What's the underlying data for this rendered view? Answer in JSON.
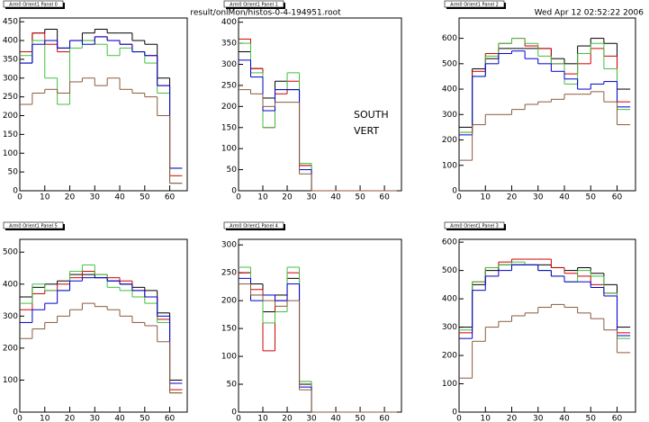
{
  "header": {
    "file": "result/onlMon/histos-0-4-194951.root",
    "date": "Wed Apr 12 02:52:22 2006",
    "labels": [
      "SOUTH",
      "VERT"
    ]
  },
  "chart_data": [
    {
      "type": "histogram",
      "title": "Arm0 Orient1 Panel 0",
      "bins": [
        0,
        5,
        10,
        15,
        20,
        25,
        30,
        35,
        40,
        45,
        50,
        55,
        60,
        65
      ],
      "xlim": [
        0,
        67
      ],
      "xticks": [
        0,
        10,
        20,
        30,
        40,
        50,
        60
      ],
      "ylim": [
        0,
        460
      ],
      "yticks": [
        0,
        50,
        100,
        150,
        200,
        250,
        300,
        350,
        400,
        450
      ],
      "series": [
        {
          "color": "#000000",
          "values": [
            340,
            420,
            430,
            380,
            400,
            420,
            430,
            420,
            420,
            400,
            390,
            300,
            60
          ]
        },
        {
          "color": "#d00000",
          "values": [
            370,
            420,
            390,
            370,
            400,
            400,
            410,
            400,
            390,
            370,
            360,
            280,
            40
          ]
        },
        {
          "color": "#40c040",
          "values": [
            360,
            400,
            300,
            230,
            380,
            400,
            390,
            360,
            380,
            370,
            340,
            260,
            20
          ]
        },
        {
          "color": "#0000d0",
          "values": [
            340,
            390,
            400,
            380,
            400,
            390,
            410,
            400,
            390,
            370,
            360,
            280,
            60
          ]
        },
        {
          "color": "#8b5a3c",
          "values": [
            230,
            260,
            270,
            260,
            290,
            300,
            280,
            300,
            270,
            260,
            250,
            200,
            20
          ]
        }
      ]
    },
    {
      "type": "histogram",
      "title": "Arm0 Orient1 Panel 1",
      "bins": [
        0,
        5,
        10,
        15,
        20,
        25,
        30,
        35,
        40,
        45,
        50,
        55,
        60,
        65
      ],
      "xlim": [
        0,
        67
      ],
      "xticks": [
        0,
        10,
        20,
        30,
        40,
        50,
        60
      ],
      "ylim": [
        0,
        410
      ],
      "yticks": [
        0,
        50,
        100,
        150,
        200,
        250,
        300,
        350,
        400
      ],
      "series": [
        {
          "color": "#000000",
          "values": [
            330,
            290,
            220,
            260,
            240,
            60,
            0,
            0,
            0,
            0,
            0,
            0,
            0
          ]
        },
        {
          "color": "#d00000",
          "values": [
            360,
            290,
            150,
            230,
            260,
            60,
            0,
            0,
            0,
            0,
            0,
            0,
            0
          ]
        },
        {
          "color": "#40c040",
          "values": [
            350,
            280,
            150,
            240,
            280,
            65,
            0,
            0,
            0,
            0,
            0,
            0,
            0
          ]
        },
        {
          "color": "#0000d0",
          "values": [
            310,
            270,
            190,
            240,
            240,
            50,
            0,
            0,
            0,
            0,
            0,
            0,
            0
          ]
        },
        {
          "color": "#8b5a3c",
          "values": [
            240,
            230,
            200,
            210,
            210,
            40,
            0,
            0,
            0,
            0,
            0,
            0,
            0
          ]
        }
      ]
    },
    {
      "type": "histogram",
      "title": "Arm0 Orient1 Panel 2",
      "bins": [
        0,
        5,
        10,
        15,
        20,
        25,
        30,
        35,
        40,
        45,
        50,
        55,
        60,
        65
      ],
      "xlim": [
        0,
        67
      ],
      "xticks": [
        0,
        10,
        20,
        30,
        40,
        50,
        60
      ],
      "ylim": [
        0,
        680
      ],
      "yticks": [
        0,
        100,
        200,
        300,
        400,
        500,
        600
      ],
      "series": [
        {
          "color": "#000000",
          "values": [
            250,
            480,
            520,
            560,
            560,
            560,
            560,
            520,
            500,
            570,
            600,
            580,
            400
          ]
        },
        {
          "color": "#d00000",
          "values": [
            230,
            470,
            540,
            580,
            600,
            570,
            560,
            500,
            460,
            500,
            560,
            530,
            350
          ]
        },
        {
          "color": "#40c040",
          "values": [
            230,
            450,
            530,
            580,
            600,
            580,
            530,
            500,
            420,
            540,
            580,
            480,
            320
          ]
        },
        {
          "color": "#0000d0",
          "values": [
            220,
            450,
            500,
            540,
            550,
            520,
            500,
            470,
            440,
            400,
            420,
            430,
            330
          ]
        },
        {
          "color": "#8b5a3c",
          "values": [
            120,
            260,
            300,
            300,
            320,
            340,
            350,
            360,
            380,
            380,
            390,
            350,
            260
          ]
        }
      ]
    },
    {
      "type": "histogram",
      "title": "Arm0 Orient1 Panel 5",
      "bins": [
        0,
        5,
        10,
        15,
        20,
        25,
        30,
        35,
        40,
        45,
        50,
        55,
        60,
        65
      ],
      "xlim": [
        0,
        67
      ],
      "xticks": [
        0,
        10,
        20,
        30,
        40,
        50,
        60
      ],
      "ylim": [
        0,
        540
      ],
      "yticks": [
        0,
        100,
        200,
        300,
        400,
        500
      ],
      "series": [
        {
          "color": "#000000",
          "values": [
            360,
            390,
            400,
            410,
            430,
            430,
            420,
            410,
            400,
            390,
            380,
            310,
            100
          ]
        },
        {
          "color": "#d00000",
          "values": [
            320,
            370,
            380,
            400,
            420,
            440,
            430,
            420,
            410,
            380,
            360,
            290,
            70
          ]
        },
        {
          "color": "#40c040",
          "values": [
            340,
            400,
            380,
            380,
            440,
            460,
            430,
            390,
            380,
            360,
            340,
            280,
            60
          ]
        },
        {
          "color": "#0000d0",
          "values": [
            280,
            320,
            340,
            380,
            410,
            420,
            420,
            410,
            400,
            380,
            360,
            300,
            90
          ]
        },
        {
          "color": "#8b5a3c",
          "values": [
            230,
            260,
            280,
            300,
            320,
            340,
            330,
            320,
            300,
            280,
            270,
            220,
            60
          ]
        }
      ]
    },
    {
      "type": "histogram",
      "title": "Arm0 Orient1 Panel 4",
      "bins": [
        0,
        5,
        10,
        15,
        20,
        25,
        30,
        35,
        40,
        45,
        50,
        55,
        60,
        65
      ],
      "xlim": [
        0,
        67
      ],
      "xticks": [
        0,
        10,
        20,
        30,
        40,
        50,
        60
      ],
      "ylim": [
        0,
        310
      ],
      "yticks": [
        0,
        50,
        100,
        150,
        200,
        250,
        300
      ],
      "series": [
        {
          "color": "#000000",
          "values": [
            250,
            230,
            180,
            210,
            240,
            50,
            0,
            0,
            0,
            0,
            0,
            0,
            0
          ]
        },
        {
          "color": "#d00000",
          "values": [
            250,
            220,
            110,
            200,
            250,
            55,
            0,
            0,
            0,
            0,
            0,
            0,
            0
          ]
        },
        {
          "color": "#40c040",
          "values": [
            260,
            210,
            160,
            180,
            260,
            55,
            0,
            0,
            0,
            0,
            0,
            0,
            0
          ]
        },
        {
          "color": "#0000d0",
          "values": [
            240,
            200,
            210,
            200,
            230,
            45,
            0,
            0,
            0,
            0,
            0,
            0,
            0
          ]
        },
        {
          "color": "#8b5a3c",
          "values": [
            230,
            210,
            200,
            190,
            200,
            40,
            0,
            0,
            0,
            0,
            0,
            0,
            0
          ]
        }
      ]
    },
    {
      "type": "histogram",
      "title": "Arm0 Orient1 Panel 3",
      "bins": [
        0,
        5,
        10,
        15,
        20,
        25,
        30,
        35,
        40,
        45,
        50,
        55,
        60,
        65
      ],
      "xlim": [
        0,
        67
      ],
      "xticks": [
        0,
        10,
        20,
        30,
        40,
        50,
        60
      ],
      "ylim": [
        0,
        610
      ],
      "yticks": [
        0,
        100,
        200,
        300,
        400,
        500,
        600
      ],
      "series": [
        {
          "color": "#000000",
          "values": [
            300,
            450,
            500,
            520,
            520,
            520,
            520,
            510,
            500,
            510,
            490,
            450,
            300
          ]
        },
        {
          "color": "#d00000",
          "values": [
            280,
            460,
            510,
            530,
            540,
            540,
            540,
            510,
            490,
            480,
            450,
            420,
            280
          ]
        },
        {
          "color": "#40c040",
          "values": [
            290,
            460,
            510,
            520,
            530,
            520,
            500,
            480,
            460,
            500,
            480,
            420,
            260
          ]
        },
        {
          "color": "#0000d0",
          "values": [
            260,
            430,
            480,
            500,
            520,
            520,
            500,
            480,
            460,
            460,
            440,
            410,
            270
          ]
        },
        {
          "color": "#8b5a3c",
          "values": [
            120,
            250,
            300,
            320,
            340,
            350,
            370,
            380,
            370,
            350,
            330,
            290,
            210
          ]
        }
      ]
    }
  ]
}
